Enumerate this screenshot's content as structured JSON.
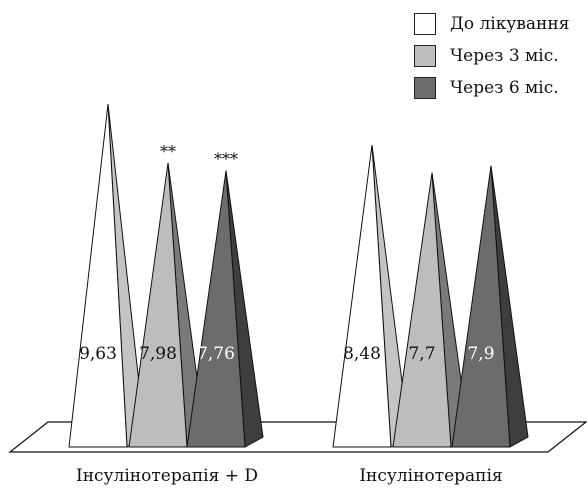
{
  "chart_data": {
    "type": "bar",
    "categories": [
      "Інсулінотерапія + D",
      "Інсулінотерапія"
    ],
    "series": [
      {
        "name": "До лікування",
        "values": [
          9.63,
          8.48
        ],
        "labels": [
          "9,63",
          "8,48"
        ],
        "color": "#ffffff",
        "side_color": "#c4c4c4"
      },
      {
        "name": "Через 3 міс.",
        "values": [
          7.98,
          7.7
        ],
        "labels": [
          "7,98",
          "7,7"
        ],
        "color": "#bdbdbd",
        "side_color": "#7a7a7a"
      },
      {
        "name": "Через 6 міс.",
        "values": [
          7.76,
          7.9
        ],
        "labels": [
          "7,76",
          "7,9"
        ],
        "color": "#6c6c6c",
        "side_color": "#3e3e3e"
      }
    ],
    "annotations": [
      {
        "category": 0,
        "series": 1,
        "text": "**"
      },
      {
        "category": 0,
        "series": 2,
        "text": "***"
      }
    ],
    "legend_position": "top-right",
    "grid": false
  }
}
